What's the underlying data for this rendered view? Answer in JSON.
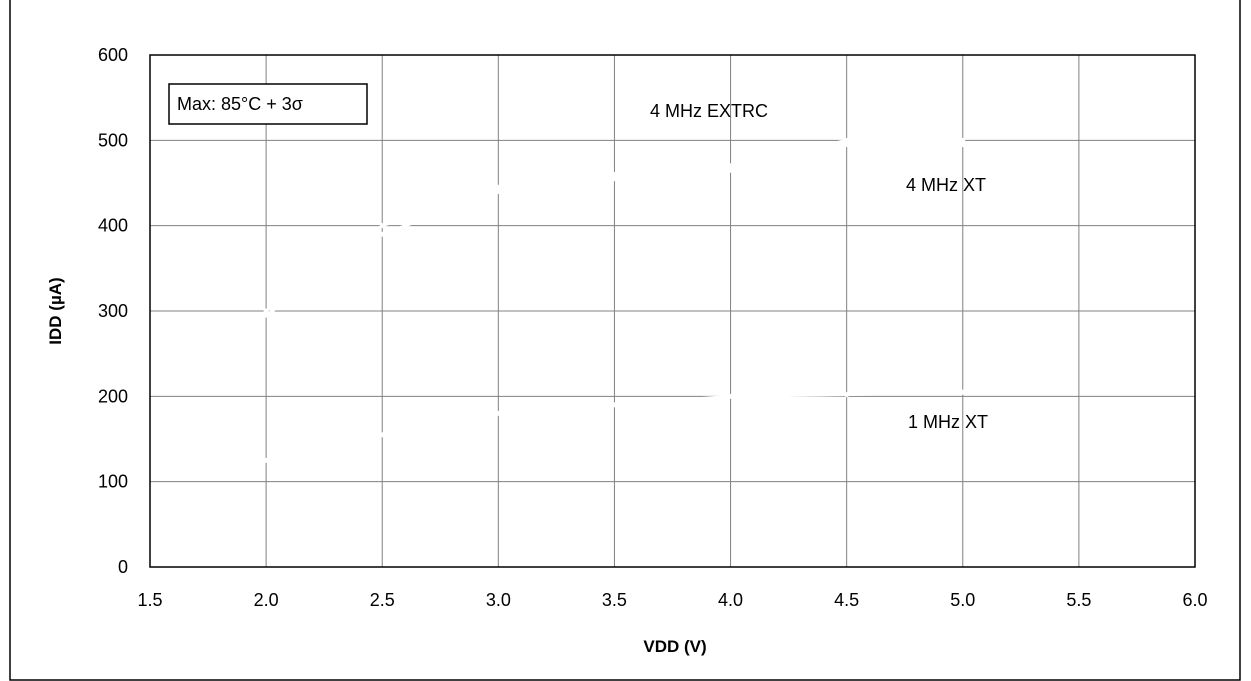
{
  "chart_data": {
    "type": "line",
    "xlabel": "VDD (V)",
    "ylabel": "IDD (µA)",
    "xlim": [
      1.5,
      6.0
    ],
    "ylim": [
      0,
      600
    ],
    "xticks": [
      "1.5",
      "2.0",
      "2.5",
      "3.0",
      "3.5",
      "4.0",
      "4.5",
      "5.0",
      "5.5",
      "6.0"
    ],
    "yticks": [
      "0",
      "100",
      "200",
      "300",
      "400",
      "500",
      "600"
    ],
    "grid": true,
    "legend": "none",
    "note": "Max: 85°C + 3σ",
    "series": [
      {
        "name": "4 MHz EXTRC",
        "color": "#ffffff",
        "x": [
          2.0,
          2.5,
          3.0,
          3.5,
          4.0,
          4.5,
          5.0
        ],
        "y": [
          300,
          400,
          445,
          460,
          470,
          500,
          500
        ]
      },
      {
        "name": "4 MHz XT",
        "color": "#ffffff",
        "x": [
          2.0,
          2.5,
          3.0,
          3.5,
          4.0,
          4.5,
          5.0
        ],
        "y": [
          295,
          390,
          440,
          455,
          465,
          495,
          495
        ]
      },
      {
        "name": "1 MHz XT",
        "color": "#ffffff",
        "x": [
          2.0,
          2.5,
          3.0,
          3.5,
          4.0,
          4.5,
          5.0
        ],
        "y": [
          125,
          155,
          180,
          190,
          200,
          202,
          205
        ]
      }
    ]
  }
}
